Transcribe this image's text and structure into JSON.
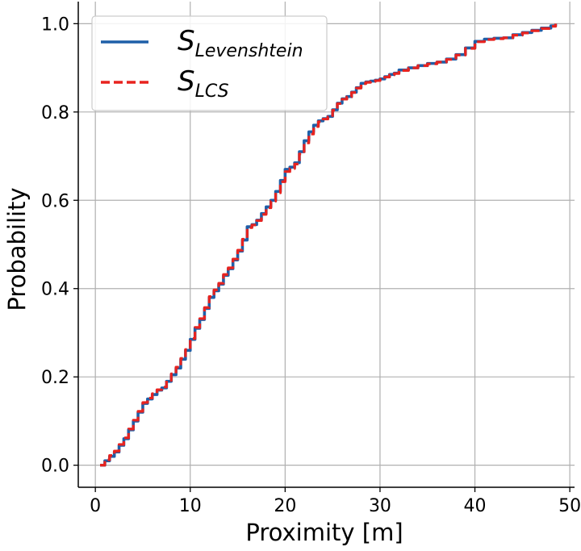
{
  "chart_data": {
    "type": "line",
    "title": "",
    "xlabel": "Proximity [m]",
    "ylabel": "Probability",
    "xlim": [
      -1.8,
      50.5
    ],
    "ylim": [
      -0.05,
      1.05
    ],
    "xticks": [
      0,
      10,
      20,
      30,
      40,
      50
    ],
    "yticks": [
      0.0,
      0.2,
      0.4,
      0.6,
      0.8,
      1.0
    ],
    "xtick_labels": [
      "0",
      "10",
      "20",
      "30",
      "40",
      "50"
    ],
    "ytick_labels": [
      "0.0",
      "0.2",
      "0.4",
      "0.6",
      "0.8",
      "1.0"
    ],
    "grid": true,
    "legend_position": "top-left",
    "series": [
      {
        "name_base": "S",
        "name_sub": "Levenshtein",
        "color": "#1f5fa8",
        "style": "solid",
        "x": [
          0.5,
          1.0,
          1.5,
          2.0,
          2.5,
          3.0,
          3.5,
          4.0,
          4.5,
          5.0,
          5.5,
          6.0,
          6.5,
          7.0,
          7.5,
          8.0,
          8.5,
          9.0,
          9.5,
          10.0,
          10.5,
          11.0,
          11.5,
          12.0,
          12.5,
          13.0,
          13.5,
          14.0,
          14.5,
          15.0,
          15.5,
          16.0,
          16.5,
          17.0,
          17.5,
          18.0,
          18.5,
          19.0,
          19.5,
          20.0,
          20.5,
          21.0,
          21.5,
          22.0,
          22.5,
          23.0,
          23.5,
          24.0,
          24.5,
          25.0,
          25.5,
          26.0,
          26.5,
          27.0,
          27.5,
          28.0,
          28.5,
          29.0,
          29.5,
          30.0,
          30.5,
          31.0,
          31.5,
          32.0,
          33.0,
          34.0,
          35.0,
          36.0,
          37.0,
          38.0,
          39.0,
          40.0,
          41.0,
          42.0,
          43.0,
          44.0,
          45.0,
          46.0,
          47.0,
          48.0,
          48.5
        ],
        "y": [
          0.0,
          0.01,
          0.02,
          0.03,
          0.045,
          0.06,
          0.08,
          0.1,
          0.12,
          0.14,
          0.15,
          0.16,
          0.17,
          0.175,
          0.19,
          0.205,
          0.22,
          0.24,
          0.26,
          0.285,
          0.31,
          0.33,
          0.355,
          0.38,
          0.395,
          0.41,
          0.43,
          0.445,
          0.465,
          0.485,
          0.51,
          0.54,
          0.545,
          0.555,
          0.57,
          0.585,
          0.6,
          0.62,
          0.645,
          0.67,
          0.675,
          0.685,
          0.71,
          0.735,
          0.755,
          0.77,
          0.78,
          0.785,
          0.79,
          0.805,
          0.82,
          0.83,
          0.835,
          0.845,
          0.855,
          0.865,
          0.868,
          0.87,
          0.872,
          0.875,
          0.88,
          0.885,
          0.888,
          0.895,
          0.9,
          0.905,
          0.91,
          0.913,
          0.92,
          0.93,
          0.945,
          0.96,
          0.965,
          0.967,
          0.968,
          0.975,
          0.98,
          0.985,
          0.99,
          0.995,
          1.0
        ]
      },
      {
        "name_base": "S",
        "name_sub": "LCS",
        "color": "#e8231f",
        "style": "dashed",
        "x": [
          0.5,
          1.0,
          1.5,
          2.0,
          2.5,
          3.0,
          3.5,
          4.0,
          4.5,
          5.0,
          5.5,
          6.0,
          6.5,
          7.0,
          7.5,
          8.0,
          8.5,
          9.0,
          9.5,
          10.0,
          10.5,
          11.0,
          11.5,
          12.0,
          12.5,
          13.0,
          13.5,
          14.0,
          14.5,
          15.0,
          15.5,
          16.0,
          16.5,
          17.0,
          17.5,
          18.0,
          18.5,
          19.0,
          19.5,
          20.0,
          20.5,
          21.0,
          21.5,
          22.0,
          22.5,
          23.0,
          23.5,
          24.0,
          24.5,
          25.0,
          25.5,
          26.0,
          26.5,
          27.0,
          27.5,
          28.0,
          28.5,
          29.0,
          29.5,
          30.0,
          30.5,
          31.0,
          31.5,
          32.0,
          33.0,
          34.0,
          35.0,
          36.0,
          37.0,
          38.0,
          39.0,
          40.0,
          41.0,
          42.0,
          43.0,
          44.0,
          45.0,
          46.0,
          47.0,
          48.0,
          48.5
        ],
        "y": [
          0.0,
          0.012,
          0.022,
          0.032,
          0.047,
          0.062,
          0.082,
          0.102,
          0.122,
          0.142,
          0.152,
          0.162,
          0.171,
          0.177,
          0.192,
          0.207,
          0.222,
          0.242,
          0.262,
          0.287,
          0.312,
          0.332,
          0.357,
          0.382,
          0.397,
          0.412,
          0.432,
          0.447,
          0.467,
          0.487,
          0.512,
          0.538,
          0.544,
          0.554,
          0.568,
          0.583,
          0.598,
          0.617,
          0.642,
          0.665,
          0.672,
          0.682,
          0.705,
          0.73,
          0.75,
          0.767,
          0.778,
          0.784,
          0.789,
          0.804,
          0.819,
          0.829,
          0.834,
          0.844,
          0.854,
          0.864,
          0.867,
          0.869,
          0.871,
          0.874,
          0.879,
          0.884,
          0.887,
          0.894,
          0.9,
          0.905,
          0.909,
          0.913,
          0.919,
          0.929,
          0.944,
          0.959,
          0.964,
          0.966,
          0.968,
          0.974,
          0.979,
          0.984,
          0.989,
          0.994,
          1.0
        ]
      }
    ]
  }
}
